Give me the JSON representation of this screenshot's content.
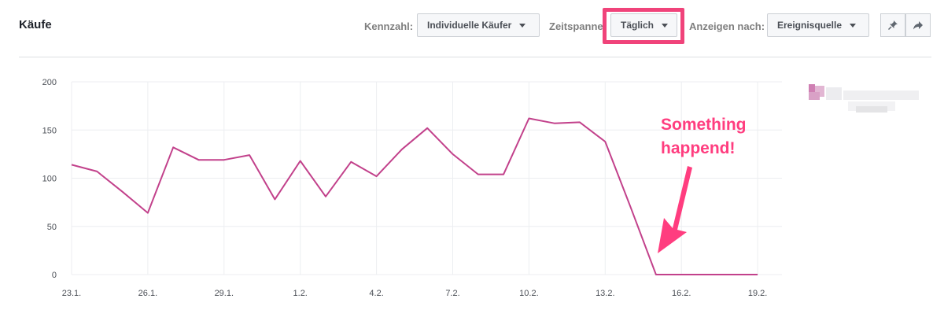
{
  "header": {
    "title": "Käufe",
    "metric_label": "Kennzahl:",
    "metric_value": "Individuelle Käufer",
    "period_label": "Zeitspanne:",
    "period_value": "Täglich",
    "view_label": "Anzeigen nach:",
    "view_value": "Ereignisquelle",
    "pin_icon": "pin-icon",
    "share_icon": "share-icon"
  },
  "annotation": {
    "text_line1": "Something",
    "text_line2": "happend!",
    "color": "#ff3d7f"
  },
  "chart_data": {
    "type": "line",
    "x": [
      "23.1.",
      "24.1.",
      "25.1.",
      "26.1.",
      "27.1.",
      "28.1.",
      "29.1.",
      "30.1.",
      "31.1.",
      "1.2.",
      "2.2.",
      "3.2.",
      "4.2.",
      "5.2.",
      "6.2.",
      "7.2.",
      "8.2.",
      "9.2.",
      "10.2.",
      "11.2.",
      "12.2.",
      "13.2.",
      "14.2.",
      "15.2.",
      "16.2.",
      "17.2.",
      "18.2.",
      "19.2."
    ],
    "series": [
      {
        "values": [
          114,
          107,
          86,
          64,
          132,
          119,
          119,
          124,
          78,
          118,
          81,
          117,
          102,
          130,
          152,
          125,
          104,
          104,
          162,
          157,
          158,
          138,
          70,
          0,
          0,
          0,
          0,
          0
        ],
        "color": "#c2418b"
      }
    ],
    "tick_labels_x": [
      "23.1.",
      "26.1.",
      "29.1.",
      "1.2.",
      "4.2.",
      "7.2.",
      "10.2.",
      "13.2.",
      "16.2.",
      "19.2."
    ],
    "tick_labels_y": [
      "0",
      "50",
      "100",
      "150",
      "200"
    ],
    "ylim": [
      0,
      200
    ],
    "grid": true
  }
}
